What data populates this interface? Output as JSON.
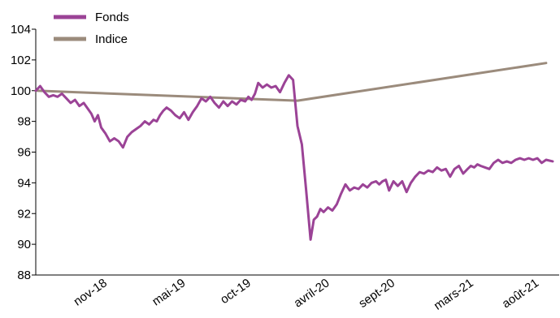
{
  "chart_data": {
    "type": "line",
    "ylim": [
      88,
      104
    ],
    "y_ticks": [
      88,
      90,
      92,
      94,
      96,
      98,
      100,
      102,
      104
    ],
    "x_range_months": [
      "2018-06",
      "2021-09"
    ],
    "x_ticks": [
      {
        "date": "2018-11",
        "label": "nov-18"
      },
      {
        "date": "2019-05",
        "label": "mai-19"
      },
      {
        "date": "2019-10",
        "label": "oct-19"
      },
      {
        "date": "2020-04",
        "label": "avril-20"
      },
      {
        "date": "2020-09",
        "label": "sept-20"
      },
      {
        "date": "2021-03",
        "label": "mars-21"
      },
      {
        "date": "2021-08",
        "label": "août-21"
      }
    ],
    "grid": false,
    "legend_position": "top-left",
    "series": [
      {
        "name": "Fonds",
        "color": "#9b4396",
        "points": [
          [
            "2018-06",
            100.0
          ],
          [
            "2018-06",
            100.3
          ],
          [
            "2018-06",
            99.9
          ],
          [
            "2018-07",
            99.6
          ],
          [
            "2018-07",
            99.7
          ],
          [
            "2018-07",
            99.6
          ],
          [
            "2018-08",
            99.8
          ],
          [
            "2018-08",
            99.5
          ],
          [
            "2018-08",
            99.2
          ],
          [
            "2018-09",
            99.4
          ],
          [
            "2018-09",
            99.0
          ],
          [
            "2018-09",
            99.2
          ],
          [
            "2018-10",
            98.8
          ],
          [
            "2018-10",
            98.5
          ],
          [
            "2018-10",
            98.0
          ],
          [
            "2018-10",
            98.4
          ],
          [
            "2018-11",
            97.6
          ],
          [
            "2018-11",
            97.2
          ],
          [
            "2018-11",
            96.7
          ],
          [
            "2018-12",
            96.9
          ],
          [
            "2018-12",
            96.7
          ],
          [
            "2018-12",
            96.3
          ],
          [
            "2019-01",
            97.0
          ],
          [
            "2019-01",
            97.3
          ],
          [
            "2019-01",
            97.5
          ],
          [
            "2019-02",
            97.7
          ],
          [
            "2019-02",
            98.0
          ],
          [
            "2019-02",
            97.8
          ],
          [
            "2019-03",
            98.1
          ],
          [
            "2019-03",
            98.0
          ],
          [
            "2019-03",
            98.4
          ],
          [
            "2019-03",
            98.7
          ],
          [
            "2019-04",
            98.9
          ],
          [
            "2019-04",
            98.7
          ],
          [
            "2019-04",
            98.4
          ],
          [
            "2019-05",
            98.2
          ],
          [
            "2019-05",
            98.6
          ],
          [
            "2019-05",
            98.1
          ],
          [
            "2019-06",
            98.6
          ],
          [
            "2019-06",
            99.0
          ],
          [
            "2019-06",
            99.5
          ],
          [
            "2019-07",
            99.3
          ],
          [
            "2019-07",
            99.6
          ],
          [
            "2019-07",
            99.2
          ],
          [
            "2019-08",
            98.9
          ],
          [
            "2019-08",
            99.3
          ],
          [
            "2019-08",
            99.0
          ],
          [
            "2019-09",
            99.3
          ],
          [
            "2019-09",
            99.1
          ],
          [
            "2019-09",
            99.4
          ],
          [
            "2019-10",
            99.3
          ],
          [
            "2019-10",
            99.6
          ],
          [
            "2019-10",
            99.4
          ],
          [
            "2019-10",
            99.8
          ],
          [
            "2019-11",
            100.5
          ],
          [
            "2019-11",
            100.2
          ],
          [
            "2019-11",
            100.4
          ],
          [
            "2019-12",
            100.2
          ],
          [
            "2019-12",
            100.3
          ],
          [
            "2019-12",
            99.9
          ],
          [
            "2020-01",
            100.5
          ],
          [
            "2020-01",
            101.0
          ],
          [
            "2020-01",
            100.7
          ],
          [
            "2020-02",
            97.7
          ],
          [
            "2020-02",
            96.5
          ],
          [
            "2020-02",
            93.5
          ],
          [
            "2020-03",
            90.3
          ],
          [
            "2020-03",
            91.6
          ],
          [
            "2020-03",
            91.8
          ],
          [
            "2020-03",
            92.3
          ],
          [
            "2020-04",
            92.1
          ],
          [
            "2020-04",
            92.4
          ],
          [
            "2020-04",
            92.2
          ],
          [
            "2020-05",
            92.6
          ],
          [
            "2020-05",
            93.3
          ],
          [
            "2020-05",
            93.9
          ],
          [
            "2020-06",
            93.5
          ],
          [
            "2020-06",
            93.7
          ],
          [
            "2020-06",
            93.6
          ],
          [
            "2020-07",
            93.9
          ],
          [
            "2020-07",
            93.7
          ],
          [
            "2020-07",
            94.0
          ],
          [
            "2020-08",
            94.1
          ],
          [
            "2020-08",
            93.9
          ],
          [
            "2020-08",
            94.1
          ],
          [
            "2020-08",
            94.2
          ],
          [
            "2020-09",
            93.5
          ],
          [
            "2020-09",
            94.1
          ],
          [
            "2020-09",
            93.8
          ],
          [
            "2020-10",
            94.1
          ],
          [
            "2020-10",
            93.4
          ],
          [
            "2020-10",
            94.0
          ],
          [
            "2020-11",
            94.4
          ],
          [
            "2020-11",
            94.7
          ],
          [
            "2020-11",
            94.6
          ],
          [
            "2020-12",
            94.8
          ],
          [
            "2020-12",
            94.7
          ],
          [
            "2020-12",
            95.0
          ],
          [
            "2021-01",
            94.8
          ],
          [
            "2021-01",
            94.9
          ],
          [
            "2021-01",
            94.4
          ],
          [
            "2021-02",
            94.9
          ],
          [
            "2021-02",
            95.1
          ],
          [
            "2021-02",
            94.6
          ],
          [
            "2021-03",
            94.9
          ],
          [
            "2021-03",
            95.1
          ],
          [
            "2021-03",
            95.0
          ],
          [
            "2021-03",
            95.2
          ],
          [
            "2021-04",
            95.1
          ],
          [
            "2021-04",
            95.0
          ],
          [
            "2021-04",
            94.9
          ],
          [
            "2021-05",
            95.3
          ],
          [
            "2021-05",
            95.5
          ],
          [
            "2021-05",
            95.3
          ],
          [
            "2021-06",
            95.4
          ],
          [
            "2021-06",
            95.3
          ],
          [
            "2021-06",
            95.5
          ],
          [
            "2021-07",
            95.6
          ],
          [
            "2021-07",
            95.5
          ],
          [
            "2021-07",
            95.6
          ],
          [
            "2021-08",
            95.5
          ],
          [
            "2021-08",
            95.6
          ],
          [
            "2021-08",
            95.3
          ],
          [
            "2021-09",
            95.5
          ],
          [
            "2021-09",
            95.4
          ]
        ]
      },
      {
        "name": "Indice",
        "color": "#9b8b7c",
        "points": [
          [
            "2018-06",
            100.0
          ],
          [
            "2020-02",
            99.35
          ],
          [
            "2021-09",
            101.8
          ]
        ]
      }
    ]
  }
}
